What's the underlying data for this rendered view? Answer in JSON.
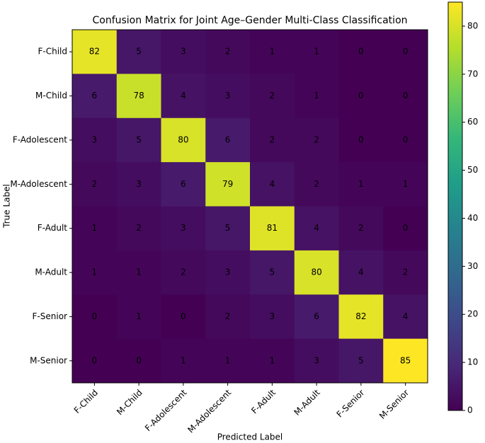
{
  "chart_data": {
    "type": "heatmap",
    "title": "Confusion Matrix for Joint Age–Gender Multi-Class Classification",
    "xlabel": "Predicted Label",
    "ylabel": "True Label",
    "x_categories": [
      "F-Child",
      "M-Child",
      "F-Adolescent",
      "M-Adolescent",
      "F-Adult",
      "M-Adult",
      "F-Senior",
      "M-Senior"
    ],
    "y_categories": [
      "F-Child",
      "M-Child",
      "F-Adolescent",
      "M-Adolescent",
      "F-Adult",
      "M-Adult",
      "F-Senior",
      "M-Senior"
    ],
    "z": [
      [
        82,
        5,
        3,
        2,
        1,
        1,
        0,
        0
      ],
      [
        6,
        78,
        4,
        3,
        2,
        1,
        0,
        0
      ],
      [
        3,
        5,
        80,
        6,
        2,
        2,
        0,
        0
      ],
      [
        2,
        3,
        6,
        79,
        4,
        2,
        1,
        1
      ],
      [
        1,
        2,
        3,
        5,
        81,
        4,
        2,
        0
      ],
      [
        1,
        1,
        2,
        3,
        5,
        80,
        4,
        2
      ],
      [
        0,
        1,
        0,
        2,
        3,
        6,
        82,
        4
      ],
      [
        0,
        0,
        1,
        1,
        1,
        3,
        5,
        85
      ]
    ],
    "colormap": "viridis",
    "zlim": [
      0,
      85
    ],
    "colorbar_ticks": [
      0,
      10,
      20,
      30,
      40,
      50,
      60,
      70,
      80
    ]
  }
}
